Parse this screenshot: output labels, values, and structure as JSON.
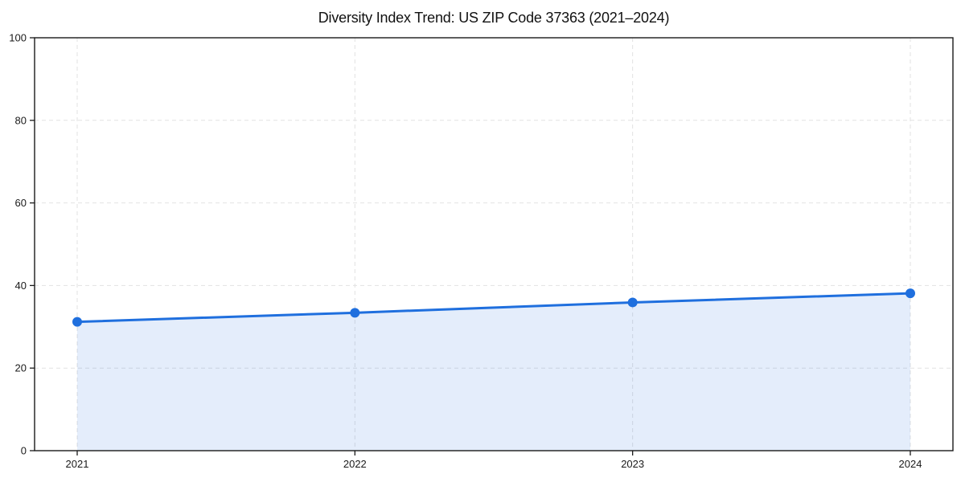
{
  "chart_data": {
    "type": "line",
    "title": "Diversity Index Trend: US ZIP Code 37363 (2021–2024)",
    "categories": [
      "2021",
      "2022",
      "2023",
      "2024"
    ],
    "series": [
      {
        "name": "Diversity Index",
        "values": [
          31.2,
          33.4,
          35.9,
          38.1
        ]
      }
    ],
    "xlabel": "",
    "ylabel": "",
    "ylim": [
      0,
      100
    ],
    "yticks": [
      0,
      20,
      40,
      60,
      80,
      100
    ],
    "grid": true,
    "grid_style": "dashed",
    "legend_position": "none",
    "area_fill": true,
    "marker": "circle",
    "colors": {
      "line": "#1f6fde",
      "marker": "#1f6fde",
      "fill": "rgba(31, 111, 222, 0.12)",
      "grid": "#e2e2e2",
      "spine": "#1a1a1a",
      "tick_label": "#1a1a1a"
    }
  }
}
